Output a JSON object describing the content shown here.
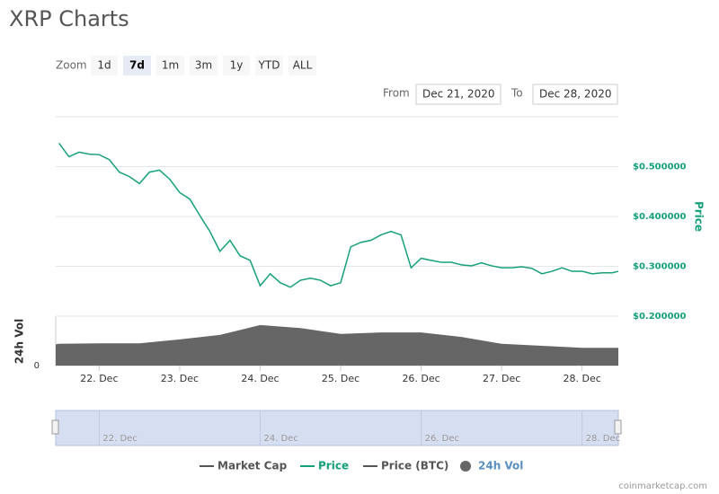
{
  "header": {
    "title": "XRP Charts"
  },
  "zoom": {
    "label": "Zoom",
    "buttons": [
      "1d",
      "7d",
      "1m",
      "3m",
      "1y",
      "YTD",
      "ALL"
    ],
    "selected": "7d"
  },
  "range": {
    "from_label": "From",
    "from": "Dec 21, 2020",
    "to_label": "To",
    "to": "Dec 28, 2020"
  },
  "chart_data": {
    "type": "line",
    "y_label": "Price",
    "y2_label": "24h Vol",
    "xlim": [
      21.46,
      28.45
    ],
    "xticks": [
      {
        "value": 22,
        "label": "22. Dec"
      },
      {
        "value": 23,
        "label": "23. Dec"
      },
      {
        "value": 24,
        "label": "24. Dec"
      },
      {
        "value": 25,
        "label": "25. Dec"
      },
      {
        "value": 26,
        "label": "26. Dec"
      },
      {
        "value": 27,
        "label": "27. Dec"
      },
      {
        "value": 28,
        "label": "28. Dec"
      }
    ],
    "ylim": [
      0.2,
      0.6
    ],
    "yticks": [
      {
        "value": 0.2,
        "label": "$0.200000"
      },
      {
        "value": 0.3,
        "label": "$0.300000"
      },
      {
        "value": 0.4,
        "label": "$0.400000"
      },
      {
        "value": 0.5,
        "label": "$0.500000"
      }
    ],
    "y2lim": [
      0,
      10
    ],
    "y2ticks": [
      0
    ],
    "grid": true,
    "legend": "bottom",
    "series": [
      {
        "name": "Market Cap",
        "color": "#555555",
        "marker": "line",
        "x": [],
        "values": []
      },
      {
        "name": "Price",
        "color": "#16a07a",
        "marker": "line",
        "x": [
          21.5,
          21.625,
          21.75,
          21.875,
          22.0,
          22.125,
          22.25,
          22.375,
          22.5,
          22.625,
          22.75,
          22.875,
          23.0,
          23.125,
          23.25,
          23.375,
          23.5,
          23.625,
          23.75,
          23.875,
          24.0,
          24.125,
          24.25,
          24.375,
          24.5,
          24.625,
          24.75,
          24.875,
          25.0,
          25.125,
          25.25,
          25.375,
          25.5,
          25.625,
          25.75,
          25.875,
          26.0,
          26.125,
          26.25,
          26.375,
          26.5,
          26.625,
          26.75,
          26.875,
          27.0,
          27.125,
          27.25,
          27.375,
          27.5,
          27.625,
          27.75,
          27.875,
          28.0,
          28.125,
          28.25,
          28.375,
          28.45
        ],
        "values": [
          0.547,
          0.52,
          0.529,
          0.525,
          0.524,
          0.514,
          0.489,
          0.48,
          0.466,
          0.489,
          0.493,
          0.475,
          0.448,
          0.435,
          0.402,
          0.37,
          0.33,
          0.352,
          0.321,
          0.312,
          0.261,
          0.285,
          0.267,
          0.258,
          0.272,
          0.276,
          0.272,
          0.261,
          0.267,
          0.339,
          0.348,
          0.352,
          0.363,
          0.37,
          0.363,
          0.297,
          0.316,
          0.312,
          0.308,
          0.308,
          0.303,
          0.301,
          0.307,
          0.301,
          0.297,
          0.297,
          0.299,
          0.296,
          0.285,
          0.29,
          0.297,
          0.29,
          0.29,
          0.285,
          0.287,
          0.287,
          0.29
        ]
      },
      {
        "name": "Price (BTC)",
        "color": "#555555",
        "marker": "line",
        "x": [],
        "values": []
      },
      {
        "name": "24h Vol",
        "color": "#666666",
        "marker": "circle",
        "axis": "y2",
        "x": [
          21.46,
          21.5,
          22.0,
          22.5,
          23.0,
          23.5,
          24.0,
          24.5,
          25.0,
          25.5,
          26.0,
          26.5,
          27.0,
          27.5,
          28.0,
          28.45
        ],
        "values": [
          4.3,
          4.4,
          4.5,
          4.5,
          5.3,
          6.2,
          8.2,
          7.6,
          6.4,
          6.7,
          6.7,
          5.8,
          4.4,
          4.0,
          3.6,
          3.6
        ]
      }
    ]
  },
  "navigator": {
    "ticks": [
      {
        "value": 22,
        "label": "22. Dec"
      },
      {
        "value": 24,
        "label": "24. Dec"
      },
      {
        "value": 26,
        "label": "26. Dec"
      },
      {
        "value": 28,
        "label": "28. Dec"
      }
    ]
  },
  "credit": "coinmarketcap.com"
}
